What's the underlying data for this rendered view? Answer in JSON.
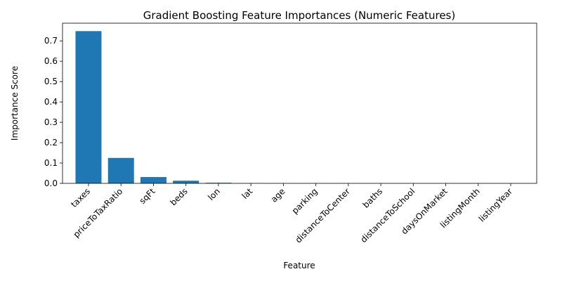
{
  "chart_data": {
    "type": "bar",
    "title": "Gradient Boosting Feature Importances (Numeric Features)",
    "xlabel": "Feature",
    "ylabel": "Importance Score",
    "categories": [
      "taxes",
      "priceToTaxRatio",
      "sqFt",
      "beds",
      "lon",
      "lat",
      "age",
      "parking",
      "distanceToCenter",
      "baths",
      "distanceToSchool",
      "daysOnMarket",
      "listingMonth",
      "listingYear"
    ],
    "values": [
      0.748,
      0.125,
      0.031,
      0.013,
      0.003,
      0.0005,
      0.0003,
      0.0002,
      0.0002,
      0.0001,
      0.0001,
      0.0001,
      0.0,
      0.0
    ],
    "ylim": [
      0,
      0.787
    ],
    "yticks": [
      0.0,
      0.1,
      0.2,
      0.3,
      0.4,
      0.5,
      0.6,
      0.7
    ],
    "ytick_labels": [
      "0.0",
      "0.1",
      "0.2",
      "0.3",
      "0.4",
      "0.5",
      "0.6",
      "0.7"
    ],
    "bar_color": "#1f77b4",
    "grid": false,
    "legend": "none"
  }
}
